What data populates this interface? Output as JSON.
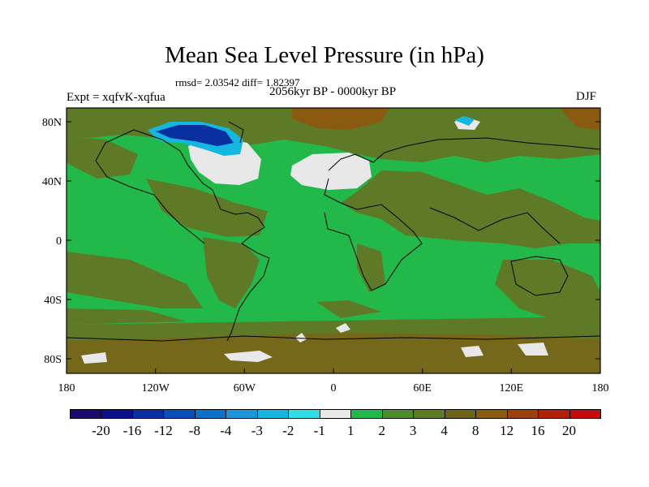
{
  "plot": {
    "title": "Mean Sea Level Pressure (in hPa)",
    "stats": "rmsd= 2.03542 diff= 1.82397",
    "experiment": "Expt = xqfvK-xqfua",
    "period": "2056kyr BP - 0000kyr BP",
    "season": "DJF"
  },
  "axes": {
    "x_ticks": [
      "180",
      "120W",
      "60W",
      "0",
      "60E",
      "120E",
      "180"
    ],
    "y_ticks": [
      "80N",
      "40N",
      "0",
      "40S",
      "80S"
    ]
  },
  "colorbar": {
    "colors": [
      "#1a0a6e",
      "#0c0e8a",
      "#0a2fa0",
      "#0a4fb5",
      "#0a70c8",
      "#1b95d8",
      "#15b7e0",
      "#2ee0e6",
      "#e8e8e8",
      "#22b84a",
      "#4e8a2e",
      "#5e7a26",
      "#6e6418",
      "#8a5a10",
      "#9c4210",
      "#b02008",
      "#c40a0a"
    ],
    "labels": [
      "-20",
      "-16",
      "-12",
      "-8",
      "-4",
      "-3",
      "-2",
      "-1",
      "1",
      "2",
      "3",
      "4",
      "8",
      "12",
      "16",
      "20"
    ]
  },
  "colors": {
    "background_field": "#22b84a",
    "positive_moderate": "#4e8a2e",
    "positive_high": "#8a5a10",
    "near_zero": "#e8e8e8",
    "negative_deep": "#0a2fa0",
    "negative_light": "#15b7e0"
  }
}
